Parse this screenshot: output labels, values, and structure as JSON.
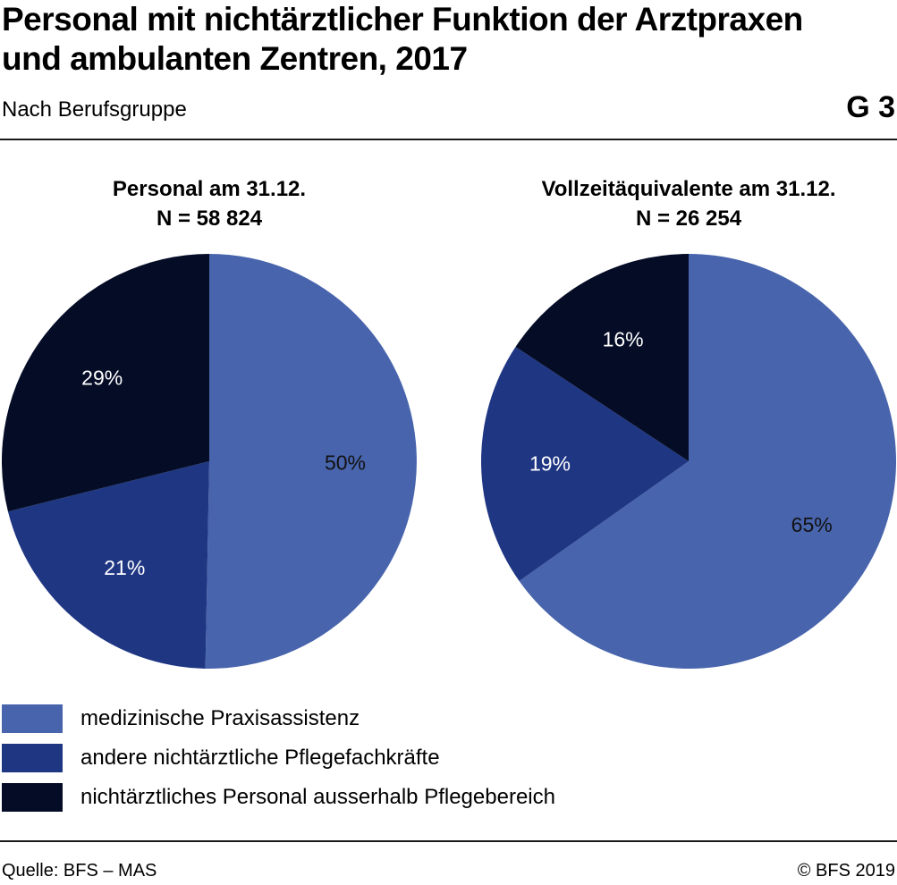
{
  "header": {
    "title": "Personal mit nichtärztlicher Funktion der Arztpraxen und ambulanten Zentren, 2017",
    "subtitle": "Nach Berufsgruppe",
    "chart_id": "G 3"
  },
  "footer": {
    "source": "Quelle: BFS – MAS",
    "copyright": "© BFS 2019"
  },
  "colors": {
    "medizinische_praxisassistenz": "#4864AC",
    "andere_pflegefachkraefte": "#1F3683",
    "ausserhalb_pflegebereich": "#050C26"
  },
  "legend": [
    {
      "label": "medizinische Praxisassistenz",
      "color": "#4864AC"
    },
    {
      "label": "andere nichtärztliche Pflegefachkräfte",
      "color": "#1F3683"
    },
    {
      "label": "nichtärztliches Personal ausserhalb Pflegebereich",
      "color": "#050C26"
    }
  ],
  "chart_data": [
    {
      "type": "pie",
      "title": "Personal am 31.12.",
      "subtitle": "N = 58 824",
      "categories": [
        "medizinische Praxisassistenz",
        "andere nichtärztliche Pflegefachkräfte",
        "nichtärztliches Personal ausserhalb Pflegebereich"
      ],
      "values": [
        50.3,
        20.8,
        28.9
      ],
      "labels": [
        "50%",
        "21%",
        "29%"
      ]
    },
    {
      "type": "pie",
      "title": "Vollzeitäquivalente am 31.12.",
      "subtitle": "N = 26 254",
      "categories": [
        "medizinische Praxisassistenz",
        "andere nichtärztliche Pflegefachkräfte",
        "nichtärztliches Personal ausserhalb Pflegebereich"
      ],
      "values": [
        65.2,
        19.1,
        15.7
      ],
      "labels": [
        "65%",
        "19%",
        "16%"
      ]
    }
  ]
}
